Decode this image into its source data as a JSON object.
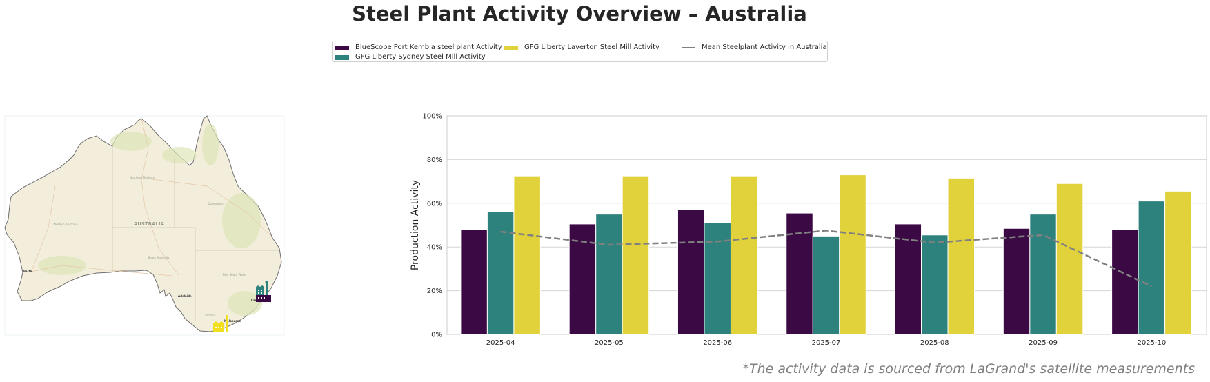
{
  "title": "Steel Plant Activity Overview – Australia",
  "footnote": "*The activity data is sourced from LaGrand's satellite measurements",
  "colors": {
    "bluescope": "#3b0a45",
    "sydney": "#2e827d",
    "laverton": "#e1d13b",
    "mean": "#808080",
    "grid": "#d6d6d6",
    "axis": "#cccccc"
  },
  "legend": [
    {
      "label": "BlueScope Port Kembla steel plant Activity",
      "type": "bar",
      "color_key": "bluescope"
    },
    {
      "label": "GFG Liberty Sydney Steel Mill Activity",
      "type": "bar",
      "color_key": "sydney"
    },
    {
      "label": "GFG Liberty Laverton Steel Mill Activity",
      "type": "bar",
      "color_key": "laverton"
    },
    {
      "label": "Mean Steelplant Activity in Australia",
      "type": "dashed-line",
      "color_key": "mean"
    }
  ],
  "map": {
    "country_label": "AUSTRALIA",
    "region_labels": [
      "Northern Territory",
      "Queensland",
      "Western Australia",
      "South Australia",
      "New South Wales",
      "Victoria"
    ],
    "city_labels": [
      "Perth",
      "Adelaide",
      "Melbourne",
      "Canberra"
    ],
    "plant_markers": [
      {
        "name": "BlueScope Port Kembla",
        "icon": "factory-icon",
        "color_key": "bluescope"
      },
      {
        "name": "GFG Liberty Sydney",
        "icon": "factory-icon",
        "color_key": "sydney"
      },
      {
        "name": "GFG Liberty Laverton",
        "icon": "factory-icon",
        "color_key": "laverton"
      }
    ]
  },
  "chart_data": {
    "type": "bar",
    "title": "",
    "xlabel": "",
    "ylabel": "Production Activity",
    "ylim": [
      0,
      100
    ],
    "yticks": [
      "0%",
      "20%",
      "40%",
      "60%",
      "80%",
      "100%"
    ],
    "grid": true,
    "legend_position": "top-center",
    "categories": [
      "2025-04",
      "2025-05",
      "2025-06",
      "2025-07",
      "2025-08",
      "2025-09",
      "2025-10"
    ],
    "series": [
      {
        "name": "BlueScope Port Kembla steel plant Activity",
        "type": "bar",
        "color_key": "bluescope",
        "values": [
          48,
          50.5,
          57,
          55.5,
          50.5,
          48.5,
          48
        ]
      },
      {
        "name": "GFG Liberty Sydney Steel Mill Activity",
        "type": "bar",
        "color_key": "sydney",
        "values": [
          56,
          55,
          51,
          45,
          45.5,
          55,
          61
        ]
      },
      {
        "name": "GFG Liberty Laverton Steel Mill Activity",
        "type": "bar",
        "color_key": "laverton",
        "values": [
          72.5,
          72.5,
          72.5,
          73,
          71.5,
          69,
          65.5
        ]
      },
      {
        "name": "Mean Steelplant Activity in Australia",
        "type": "line",
        "style": "dashed",
        "color_key": "mean",
        "values": [
          47,
          41,
          42.5,
          47.5,
          42,
          45.5,
          22
        ]
      }
    ]
  }
}
